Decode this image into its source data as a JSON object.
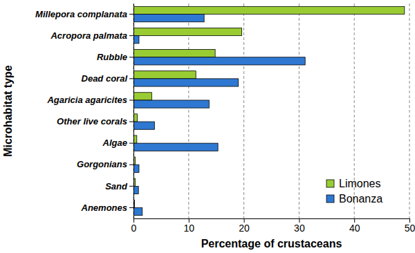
{
  "chart_data": {
    "type": "bar",
    "orientation": "horizontal",
    "x_label": "Percentage of crustaceans",
    "y_label": "Microhabitat type",
    "categories": [
      "Millepora complanata",
      "Acropora palmata",
      "Rubble",
      "Dead coral",
      "Agaricia agaricites",
      "Other live corals",
      "Algae",
      "Gorgonians",
      "Sand",
      "Anemones"
    ],
    "series": [
      {
        "name": "Limones",
        "color": "#99cc33",
        "values": [
          49.1,
          19.6,
          14.8,
          11.3,
          3.3,
          0.7,
          0.6,
          0.3,
          0.3,
          0.2
        ]
      },
      {
        "name": "Bonanza",
        "color": "#2e78d2",
        "values": [
          12.8,
          1.0,
          31.1,
          19.0,
          13.7,
          3.8,
          15.3,
          1.0,
          0.9,
          1.6
        ]
      }
    ],
    "xlim": [
      0,
      50
    ],
    "xticks": [
      0,
      10,
      20,
      30,
      40,
      50
    ],
    "grid": true,
    "legend": "lower right"
  }
}
